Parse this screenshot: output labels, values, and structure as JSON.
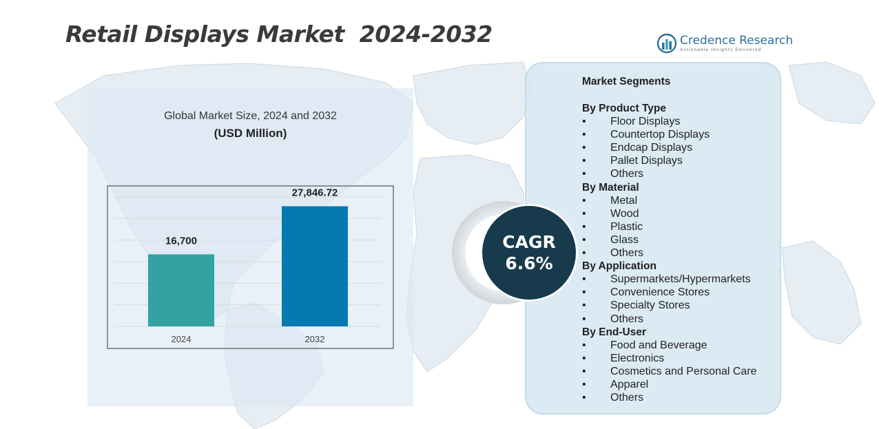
{
  "page": {
    "title": "Retail Displays Market  2024-2032"
  },
  "logo": {
    "name": "Credence Research",
    "tagline": "Actionable Insights Delivered",
    "icon": "bar-chart-logo-icon"
  },
  "chart_data": {
    "type": "bar",
    "title": "Global Market Size, 2024 and 2032",
    "subtitle": "(USD Million)",
    "categories": [
      "2024",
      "2032"
    ],
    "values": [
      16700,
      27846.72
    ],
    "data_labels": [
      "16,700",
      "27,846.72"
    ],
    "colors": [
      "#33a3a1",
      "#0779b1"
    ],
    "ylim": [
      0,
      30000
    ],
    "grid": true
  },
  "cagr": {
    "label": "CAGR",
    "value": "6.6%"
  },
  "segments": {
    "title": "Market Segments",
    "groups": [
      {
        "heading": "By Product Type",
        "items": [
          "Floor Displays",
          "Countertop Displays",
          "Endcap Displays",
          "Pallet Displays",
          "Others"
        ]
      },
      {
        "heading": "By Material",
        "items": [
          "Metal",
          "Wood",
          "Plastic",
          "Glass",
          "Others"
        ]
      },
      {
        "heading": "By Application",
        "items": [
          "Supermarkets/Hypermarkets",
          "Convenience Stores",
          "Specialty Stores",
          "Others"
        ]
      },
      {
        "heading": "By End-User",
        "items": [
          "Food and Beverage",
          "Electronics",
          "Cosmetics and Personal Care",
          "Apparel",
          "Others"
        ]
      }
    ],
    "bullet": "•"
  },
  "colors": {
    "panel_left": "#dae8f3",
    "panel_right": "#d6e6f1",
    "cagr_circle": "#173b4c",
    "title_text": "#3a3a3a"
  }
}
